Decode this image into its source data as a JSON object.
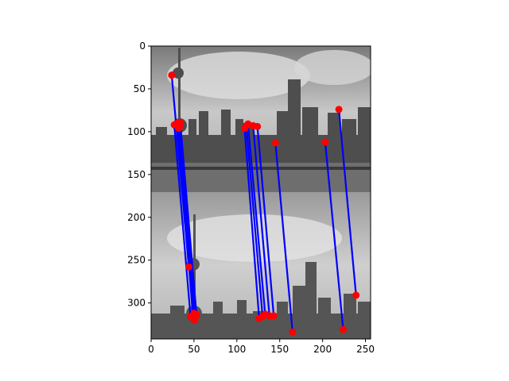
{
  "chart_data": {
    "type": "scatter",
    "title": "",
    "xlabel": "",
    "ylabel": "",
    "xlim": [
      0,
      256
    ],
    "ylim": [
      342,
      0
    ],
    "y_inverted": true,
    "grid": false,
    "legend": "none",
    "background": "two stacked grayscale photos of a city skyline with a TV tower (top image rows 0–171, bottom image rows 171–342)",
    "x_ticks": [
      0,
      50,
      100,
      150,
      200,
      250
    ],
    "y_ticks": [
      0,
      50,
      100,
      150,
      200,
      250,
      300
    ],
    "line_color": "#0000ff",
    "point_color": "#ff0000",
    "matches": [
      {
        "x1": 24,
        "y1": 34,
        "x2": 44,
        "y2": 258
      },
      {
        "x1": 27,
        "y1": 92,
        "x2": 46,
        "y2": 316
      },
      {
        "x1": 31,
        "y1": 90,
        "x2": 49,
        "y2": 318
      },
      {
        "x1": 33,
        "y1": 95,
        "x2": 51,
        "y2": 320
      },
      {
        "x1": 34,
        "y1": 89,
        "x2": 53,
        "y2": 314
      },
      {
        "x1": 32,
        "y1": 96,
        "x2": 52,
        "y2": 316
      },
      {
        "x1": 30,
        "y1": 91,
        "x2": 50,
        "y2": 312
      },
      {
        "x1": 109,
        "y1": 96,
        "x2": 126,
        "y2": 318
      },
      {
        "x1": 111,
        "y1": 93,
        "x2": 130,
        "y2": 316
      },
      {
        "x1": 113,
        "y1": 91,
        "x2": 133,
        "y2": 313
      },
      {
        "x1": 119,
        "y1": 93,
        "x2": 138,
        "y2": 315
      },
      {
        "x1": 124,
        "y1": 94,
        "x2": 143,
        "y2": 315
      },
      {
        "x1": 145,
        "y1": 113,
        "x2": 165,
        "y2": 334
      },
      {
        "x1": 203,
        "y1": 112,
        "x2": 224,
        "y2": 331
      },
      {
        "x1": 219,
        "y1": 74,
        "x2": 239,
        "y2": 291
      }
    ]
  }
}
